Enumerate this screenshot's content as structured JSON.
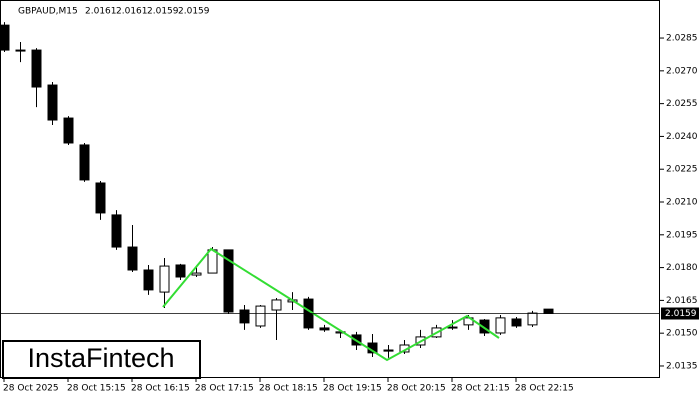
{
  "chart_data": {
    "type": "candlestick",
    "title": "GBPAUD,M15",
    "categories": [
      "28 Oct 2025",
      null,
      null,
      null,
      "28 Oct 15:15",
      null,
      null,
      null,
      "28 Oct 16:15",
      null,
      null,
      null,
      "28 Oct 17:15",
      null,
      null,
      null,
      "28 Oct 18:15",
      null,
      null,
      null,
      "28 Oct 19:15",
      null,
      null,
      null,
      "28 Oct 20:15",
      null,
      null,
      null,
      "28 Oct 21:15",
      null,
      null,
      null,
      "28 Oct 22:15",
      null,
      null
    ],
    "open": [
      2.02909,
      2.02795,
      2.02795,
      2.02635,
      2.02484,
      2.02361,
      2.02187,
      2.02041,
      2.01894,
      2.01789,
      2.01688,
      2.01812,
      2.01766,
      2.01775,
      2.01881,
      2.01606,
      2.01533,
      2.01606,
      2.01643,
      2.01656,
      2.01524,
      2.01501,
      2.01492,
      2.01455,
      2.01423,
      2.01414,
      2.01446,
      2.01483,
      2.01528,
      2.01538,
      2.0156,
      2.01501,
      2.01565,
      2.01538,
      2.0161
    ],
    "high": [
      2.02923,
      2.02832,
      2.02804,
      2.02649,
      2.02493,
      2.0237,
      2.02196,
      2.02063,
      2.01995,
      2.01812,
      2.01844,
      2.01817,
      2.01807,
      2.01894,
      2.01881,
      2.01629,
      2.01629,
      2.01661,
      2.01688,
      2.01666,
      2.01538,
      2.01515,
      2.01506,
      2.01496,
      2.01446,
      2.01469,
      2.01515,
      2.01538,
      2.0156,
      2.01583,
      2.01565,
      2.01583,
      2.01574,
      2.01602,
      2.0161
    ],
    "low": [
      2.02786,
      2.0274,
      2.02534,
      2.02452,
      2.02361,
      2.02192,
      2.02018,
      2.01881,
      2.0178,
      2.01675,
      2.01615,
      2.01743,
      2.01757,
      2.01775,
      2.01588,
      2.01515,
      2.01524,
      2.01469,
      2.01606,
      2.01515,
      2.01506,
      2.01478,
      2.01423,
      2.01391,
      2.01387,
      2.01405,
      2.01432,
      2.01478,
      2.01515,
      2.01515,
      2.01487,
      2.01492,
      2.01524,
      2.01528,
      2.0159
    ],
    "close": [
      2.02795,
      2.02795,
      2.02626,
      2.02475,
      2.0237,
      2.02201,
      2.0205,
      2.01894,
      2.01789,
      2.01698,
      2.01807,
      2.01757,
      2.01775,
      2.01881,
      2.01597,
      2.01547,
      2.01624,
      2.01652,
      2.01652,
      2.01524,
      2.01515,
      2.01506,
      2.01446,
      2.0141,
      2.01418,
      2.01446,
      2.01483,
      2.01524,
      2.01524,
      2.0157,
      2.01501,
      2.0157,
      2.01533,
      2.01592,
      2.0159
    ],
    "up_color": "#ffffff",
    "down_color": "#000000",
    "pattern_color": "#33dd33",
    "ylim": [
      2.01295,
      2.03024
    ],
    "yticks": [
      2.0135,
      {
        "value": 2.015,
        "label": "2.0150"
      },
      2.0165,
      {
        "value": 2.018,
        "label": "2.0180"
      },
      2.0195,
      {
        "value": 2.021,
        "label": "2.0210"
      },
      2.0225,
      {
        "value": 2.024,
        "label": "2.0240"
      },
      2.0255,
      {
        "value": 2.027,
        "label": "2.0270"
      },
      2.0285
    ],
    "watermark": "InstaFintech"
  }
}
